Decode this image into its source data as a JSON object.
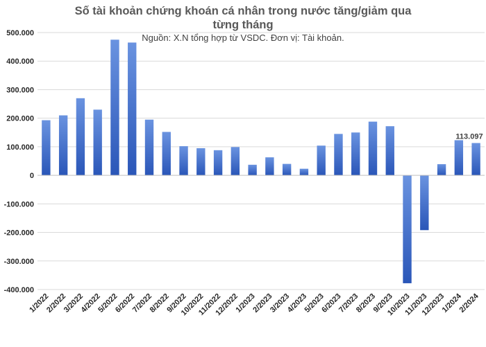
{
  "chart_data": {
    "type": "bar",
    "title_line1": "Số tài khoản chứng khoán cá nhân trong nước tăng/giảm qua",
    "title_line2": "từng tháng",
    "subtitle": "Nguồn: X.N tổng hợp từ VSDC. Đơn vị: Tài khoản.",
    "categories": [
      "1/2022",
      "2/2022",
      "3/2022",
      "4/2022",
      "5/2022",
      "6/2022",
      "7/2022",
      "8/2022",
      "9/2022",
      "10/2022",
      "11/2022",
      "12/2022",
      "1/2023",
      "2/2023",
      "3/2023",
      "4/2023",
      "5/2023",
      "6/2023",
      "7/2023",
      "8/2023",
      "9/2023",
      "10/2023",
      "11/2023",
      "12/2023",
      "1/2024",
      "2/2024"
    ],
    "values": [
      193000,
      210000,
      270000,
      230000,
      475000,
      465000,
      195000,
      152000,
      102000,
      95000,
      88000,
      99000,
      37000,
      63000,
      40000,
      23000,
      104000,
      145000,
      150000,
      188000,
      172000,
      -378000,
      -192000,
      39000,
      123000,
      113097
    ],
    "ylim": [
      -400000,
      500000
    ],
    "yticks": [
      500000,
      400000,
      300000,
      200000,
      100000,
      0,
      -100000,
      -200000,
      -300000,
      -400000
    ],
    "ytick_labels": [
      "500.000",
      "400.000",
      "300.000",
      "200.000",
      "100.000",
      "0",
      "-100.000",
      "-200.000",
      "-300.000",
      "-400.000"
    ],
    "data_labels": [
      {
        "index": 25,
        "text": "113.097"
      }
    ],
    "grid": true,
    "colors": {
      "bar_light": "#6a93e0",
      "bar_dark": "#2a56b8",
      "grid": "#d9d9d9",
      "axis": "#bfbfbf"
    }
  }
}
